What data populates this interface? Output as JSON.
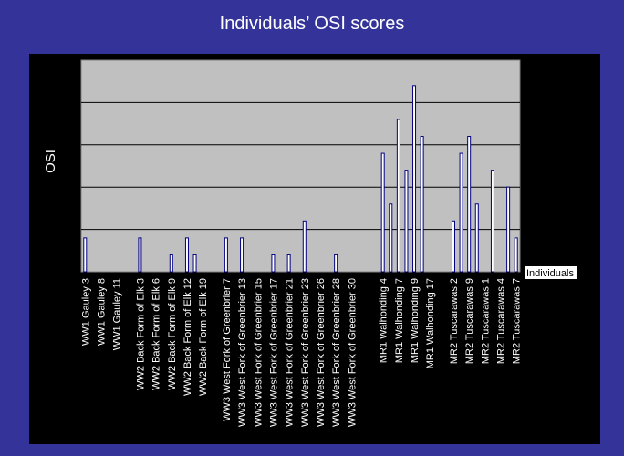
{
  "chart_data": {
    "type": "bar",
    "title": "Individuals’ OSI scores",
    "xlabel": "Individuals",
    "ylabel": "OSI",
    "ylim": [
      0,
      5
    ],
    "grid": true,
    "colors": {
      "background": "#333399",
      "panel": "#000000",
      "plot_area": "#c0c0c0",
      "bar_fill": "#ffffff",
      "bar_stroke": "#000080",
      "gridline": "#000000",
      "text": "#ffffff"
    },
    "categories": [
      "WW1 Gauley 3",
      "",
      "WW1 Gauley 8",
      "",
      "WW1 Gauley 11",
      "",
      "",
      "WW2 Back Form of Elk 3",
      "",
      "WW2 Back Form of Elk 6",
      "",
      "WW2 Back Form of Elk 9",
      "",
      "WW2 Back Form of Elk 12",
      "",
      "WW2 Back Form of Elk 19",
      "",
      "",
      "WW3 West Fork of Greenbrier 7",
      "",
      "WW3 West Fork of Greenbrier 13",
      "",
      "WW3 West Fork of Greenbrier 15",
      "",
      "WW3 West Fork of Greenbrier 17",
      "",
      "WW3 West Fork of Greenbrier 21",
      "",
      "WW3 West Fork of Greenbrier 23",
      "",
      "WW3 West Fork of Greenbrier 26",
      "",
      "WW3 West Fork of Greenbrier 28",
      "",
      "WW3 West Fork of Greenbrier 30",
      "",
      "",
      "",
      "MR1 Walhonding 4",
      "",
      "MR1 Walhonding 7",
      "",
      "MR1 Walhonding 9",
      "",
      "MR1 Walhonding 17",
      "",
      "",
      "MR2 Tuscarawas 2",
      "",
      "MR2 Tuscarawas 9",
      "",
      "MR2 Tuscarawas 1",
      "",
      "MR2 Tuscarawas 4",
      "",
      "MR2 Tuscarawas 7"
    ],
    "values": [
      0.8,
      0,
      0,
      0,
      0,
      0,
      0,
      0.8,
      0,
      0,
      0,
      0.4,
      0,
      0.8,
      0.4,
      0,
      0,
      0,
      0.8,
      0,
      0.8,
      0,
      0,
      0,
      0.4,
      0,
      0.4,
      0,
      1.2,
      0,
      0,
      0,
      0.4,
      0,
      0,
      0,
      0,
      0,
      2.8,
      1.6,
      3.6,
      2.4,
      4.4,
      3.2,
      0,
      0,
      0,
      1.2,
      2.8,
      3.2,
      1.6,
      0,
      2.4,
      0,
      2.0,
      0.8
    ]
  }
}
